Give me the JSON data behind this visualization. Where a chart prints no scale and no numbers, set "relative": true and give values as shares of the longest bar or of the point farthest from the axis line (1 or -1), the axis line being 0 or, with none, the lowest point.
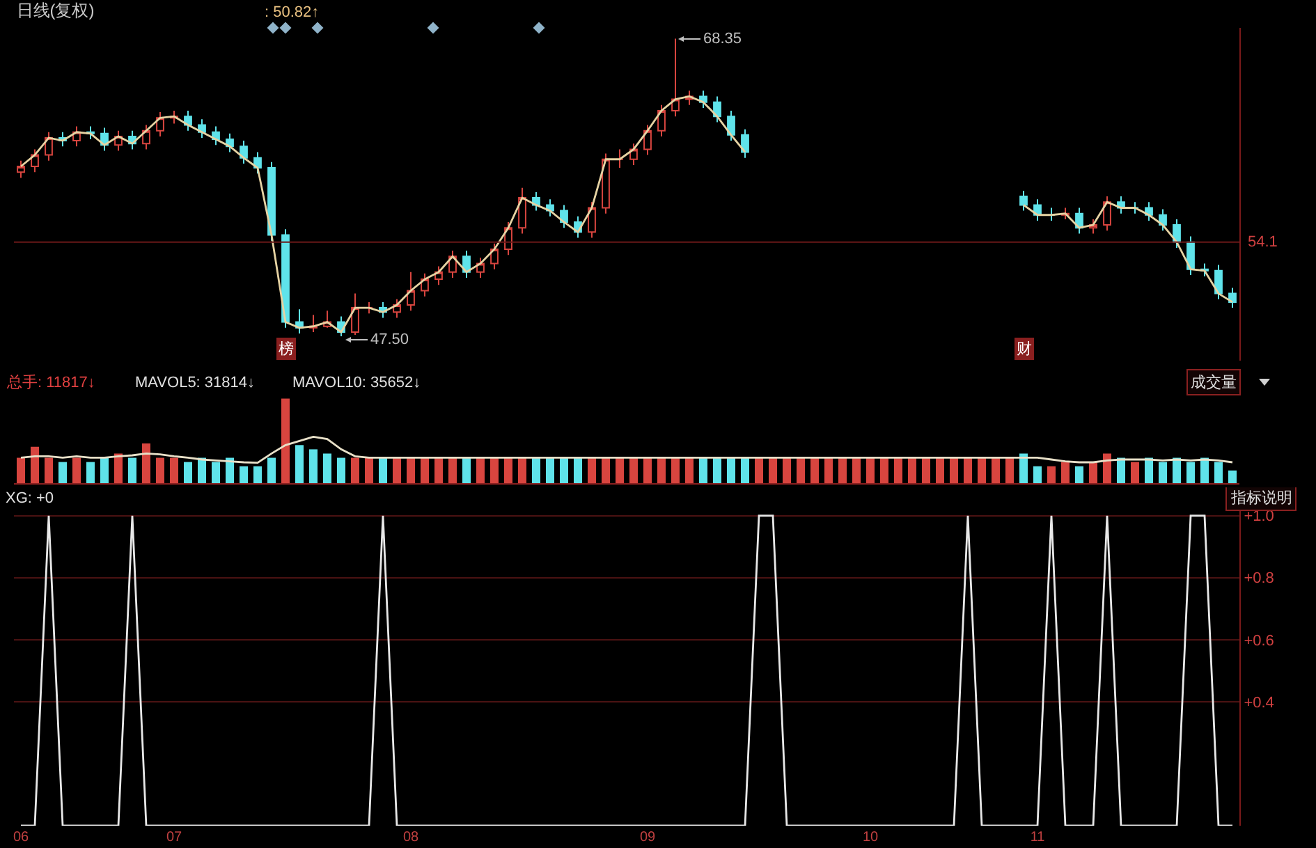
{
  "chart_data": [
    {
      "type": "candlestick",
      "title": "日线(复权)",
      "categories": [
        null,
        null,
        null,
        null,
        null,
        null,
        null,
        null,
        null,
        null,
        null,
        null,
        null,
        null,
        null,
        null,
        null,
        null,
        null,
        null,
        null,
        null,
        null,
        null,
        null,
        null,
        null,
        null,
        null,
        null,
        null,
        null,
        null,
        null,
        null,
        null,
        null,
        null,
        null,
        null,
        null,
        null,
        null,
        null,
        null,
        null,
        null,
        null,
        null,
        null,
        null,
        null,
        null,
        null,
        null,
        null,
        null,
        null,
        null,
        null,
        null,
        null,
        null,
        null,
        null,
        null,
        null,
        null,
        null,
        null,
        null,
        null,
        null,
        null,
        null,
        null,
        null,
        null,
        null,
        null,
        null,
        null,
        null,
        null,
        null,
        null,
        null,
        null
      ],
      "ohlc": [
        [
          59.0,
          59.8,
          58.6,
          59.4
        ],
        [
          59.4,
          60.6,
          59.0,
          60.2
        ],
        [
          60.2,
          61.8,
          59.8,
          61.4
        ],
        [
          61.4,
          61.8,
          60.8,
          61.2
        ],
        [
          61.2,
          62.2,
          60.8,
          61.8
        ],
        [
          61.8,
          62.2,
          61.3,
          61.7
        ],
        [
          61.7,
          62.1,
          60.5,
          60.9
        ],
        [
          60.9,
          61.9,
          60.5,
          61.5
        ],
        [
          61.5,
          61.9,
          60.6,
          61.0
        ],
        [
          61.0,
          62.3,
          60.6,
          61.9
        ],
        [
          61.9,
          63.2,
          61.5,
          62.8
        ],
        [
          62.8,
          63.3,
          62.4,
          62.9
        ],
        [
          62.9,
          63.3,
          61.9,
          62.3
        ],
        [
          62.3,
          62.7,
          61.4,
          61.8
        ],
        [
          61.8,
          62.2,
          60.9,
          61.3
        ],
        [
          61.3,
          61.7,
          60.4,
          60.8
        ],
        [
          60.8,
          61.2,
          59.6,
          60.0
        ],
        [
          60.0,
          60.4,
          58.9,
          59.3
        ],
        [
          59.3,
          59.7,
          54.2,
          54.6
        ],
        [
          54.6,
          55.0,
          48.1,
          48.5
        ],
        [
          48.5,
          49.4,
          47.7,
          48.1
        ],
        [
          48.1,
          49.0,
          47.8,
          48.2
        ],
        [
          48.2,
          49.3,
          48.1,
          48.5
        ],
        [
          48.5,
          48.9,
          47.5,
          47.8
        ],
        [
          47.8,
          50.5,
          47.6,
          49.5
        ],
        [
          49.5,
          49.9,
          49.1,
          49.5
        ],
        [
          49.5,
          49.9,
          48.8,
          49.2
        ],
        [
          49.2,
          50.1,
          48.8,
          49.7
        ],
        [
          49.7,
          52.0,
          49.3,
          50.7
        ],
        [
          50.7,
          51.9,
          50.3,
          51.5
        ],
        [
          51.5,
          52.4,
          51.1,
          52.0
        ],
        [
          52.0,
          53.5,
          51.6,
          53.1
        ],
        [
          53.1,
          53.5,
          51.6,
          52.0
        ],
        [
          52.0,
          53.0,
          51.6,
          52.6
        ],
        [
          52.6,
          54.0,
          52.2,
          53.6
        ],
        [
          53.6,
          55.5,
          53.2,
          55.1
        ],
        [
          55.1,
          57.9,
          54.7,
          57.2
        ],
        [
          57.2,
          57.6,
          56.3,
          56.7
        ],
        [
          56.7,
          57.1,
          55.9,
          56.3
        ],
        [
          56.3,
          56.7,
          55.1,
          55.5
        ],
        [
          55.5,
          55.9,
          54.4,
          54.8
        ],
        [
          54.8,
          56.9,
          54.4,
          56.5
        ],
        [
          56.5,
          60.3,
          56.1,
          59.9
        ],
        [
          59.9,
          60.6,
          59.3,
          59.9
        ],
        [
          59.9,
          61.0,
          59.5,
          60.6
        ],
        [
          60.6,
          62.3,
          60.2,
          61.9
        ],
        [
          61.9,
          63.7,
          61.5,
          63.3
        ],
        [
          63.3,
          68.35,
          62.9,
          64.1
        ],
        [
          64.1,
          64.7,
          63.7,
          64.3
        ],
        [
          64.3,
          64.7,
          63.5,
          63.9
        ],
        [
          63.9,
          64.3,
          62.5,
          62.9
        ],
        [
          62.9,
          63.3,
          61.2,
          61.6
        ],
        [
          61.6,
          62.0,
          60.0,
          60.4
        ],
        null,
        null,
        null,
        null,
        null,
        null,
        null,
        null,
        null,
        null,
        null,
        null,
        null,
        null,
        null,
        null,
        null,
        null,
        null,
        [
          57.3,
          57.7,
          56.3,
          56.7
        ],
        [
          56.7,
          57.1,
          55.6,
          56.0
        ],
        [
          56.0,
          56.5,
          55.6,
          56.0
        ],
        [
          56.0,
          56.5,
          55.7,
          56.1
        ],
        [
          56.1,
          56.5,
          54.7,
          55.1
        ],
        [
          55.1,
          55.7,
          54.7,
          55.3
        ],
        [
          55.3,
          57.3,
          54.9,
          56.9
        ],
        [
          56.9,
          57.3,
          56.1,
          56.5
        ],
        [
          56.5,
          56.9,
          56.1,
          56.5
        ],
        [
          56.5,
          56.9,
          55.6,
          56.0
        ],
        [
          56.0,
          56.4,
          54.9,
          55.3
        ],
        [
          55.3,
          55.7,
          53.7,
          54.1
        ],
        [
          54.1,
          54.5,
          51.8,
          52.2
        ],
        [
          52.2,
          52.6,
          51.7,
          52.1
        ],
        [
          52.1,
          52.5,
          50.1,
          50.5
        ],
        [
          50.5,
          50.9,
          49.5,
          49.9
        ]
      ],
      "series": [
        {
          "type": "line",
          "color": "#e6d3a3",
          "values": [
            59.4,
            60.2,
            61.4,
            61.2,
            61.8,
            61.7,
            60.9,
            61.5,
            61.0,
            61.9,
            62.8,
            62.9,
            62.3,
            61.8,
            61.3,
            60.8,
            60.0,
            59.3,
            54.6,
            48.5,
            48.1,
            48.2,
            48.5,
            47.8,
            49.5,
            49.5,
            49.2,
            49.7,
            50.7,
            51.5,
            52.0,
            53.1,
            52.0,
            52.6,
            53.6,
            55.1,
            57.2,
            56.7,
            56.3,
            55.5,
            54.8,
            56.5,
            59.9,
            59.9,
            60.6,
            61.9,
            63.3,
            64.1,
            64.3,
            63.9,
            62.9,
            61.6,
            60.4,
            null,
            null,
            null,
            null,
            null,
            null,
            null,
            null,
            null,
            null,
            null,
            null,
            null,
            null,
            null,
            null,
            null,
            null,
            null,
            56.7,
            56.0,
            56.0,
            56.1,
            55.1,
            55.3,
            56.9,
            56.5,
            56.5,
            56.0,
            55.3,
            54.1,
            52.2,
            52.1,
            50.5,
            49.9
          ]
        }
      ],
      "ylim": [
        45.8,
        69.1
      ],
      "ref_lines": [
        {
          "axis": "y",
          "value": 54.1,
          "label": "54.1",
          "color": "#6a1818"
        }
      ],
      "annotations": [
        ": 50.82↑",
        "68.35",
        "47.50",
        "榜",
        "财"
      ]
    },
    {
      "type": "bar",
      "relative": true,
      "categories": [
        null,
        null,
        null,
        null,
        null,
        null,
        null,
        null,
        null,
        null,
        null,
        null,
        null,
        null,
        null,
        null,
        null,
        null,
        null,
        null,
        null,
        null,
        null,
        null,
        null,
        null,
        null,
        null,
        null,
        null,
        null,
        null,
        null,
        null,
        null,
        null,
        null,
        null,
        null,
        null,
        null,
        null,
        null,
        null,
        null,
        null,
        null,
        null,
        null,
        null,
        null,
        null,
        null,
        null,
        null,
        null,
        null,
        null,
        null,
        null,
        null,
        null,
        null,
        null,
        null,
        null,
        null,
        null,
        null,
        null,
        null,
        null,
        null,
        null,
        null,
        null,
        null,
        null,
        null,
        null,
        null,
        null,
        null,
        null,
        null,
        null,
        null,
        null
      ],
      "series": [
        {
          "values": [
            0.3,
            0.43,
            0.3,
            0.25,
            0.3,
            0.25,
            0.3,
            0.35,
            0.3,
            0.47,
            0.3,
            0.3,
            0.25,
            0.3,
            0.25,
            0.3,
            0.2,
            0.2,
            0.3,
            1,
            0.45,
            0.4,
            0.35,
            0.3,
            0.3,
            0.3,
            0.3,
            0.3,
            0.3,
            0.3,
            0.3,
            0.3,
            0.3,
            0.3,
            0.3,
            0.3,
            0.3,
            0.3,
            0.3,
            0.3,
            0.3,
            0.3,
            0.3,
            0.3,
            0.3,
            0.3,
            0.3,
            0.3,
            0.3,
            0.3,
            0.3,
            0.3,
            0.3,
            0.3,
            0.3,
            0.3,
            0.3,
            0.3,
            0.3,
            0.3,
            0.3,
            0.3,
            0.3,
            0.3,
            0.3,
            0.3,
            0.3,
            0.3,
            0.3,
            0.3,
            0.3,
            0.3,
            0.35,
            0.2,
            0.2,
            0.25,
            0.2,
            0.25,
            0.35,
            0.3,
            0.25,
            0.3,
            0.25,
            0.3,
            0.25,
            0.3,
            0.25,
            0.15
          ],
          "colors": [
            "#d8453f",
            "#d8453f",
            "#d8453f",
            "#5fe3ea",
            "#d8453f",
            "#5fe3ea",
            "#5fe3ea",
            "#d8453f",
            "#5fe3ea",
            "#d8453f",
            "#d8453f",
            "#d8453f",
            "#5fe3ea",
            "#5fe3ea",
            "#5fe3ea",
            "#5fe3ea",
            "#5fe3ea",
            "#5fe3ea",
            "#5fe3ea",
            "#d8453f",
            "#5fe3ea",
            "#5fe3ea",
            "#5fe3ea",
            "#5fe3ea",
            "#d8453f",
            "#d8453f",
            "#5fe3ea",
            "#d8453f",
            "#d8453f",
            "#d8453f",
            "#d8453f",
            "#d8453f",
            "#5fe3ea",
            "#d8453f",
            "#d8453f",
            "#d8453f",
            "#d8453f",
            "#5fe3ea",
            "#5fe3ea",
            "#5fe3ea",
            "#5fe3ea",
            "#d8453f",
            "#d8453f",
            "#d8453f",
            "#d8453f",
            "#d8453f",
            "#d8453f",
            "#d8453f",
            "#d8453f",
            "#5fe3ea",
            "#5fe3ea",
            "#5fe3ea",
            "#5fe3ea",
            "#d8453f",
            "#d8453f",
            "#d8453f",
            "#d8453f",
            "#d8453f",
            "#d8453f",
            "#d8453f",
            "#d8453f",
            "#d8453f",
            "#d8453f",
            "#d8453f",
            "#d8453f",
            "#d8453f",
            "#d8453f",
            "#d8453f",
            "#d8453f",
            "#d8453f",
            "#d8453f",
            "#d8453f",
            "#5fe3ea",
            "#5fe3ea",
            "#d8453f",
            "#d8453f",
            "#5fe3ea",
            "#d8453f",
            "#d8453f",
            "#5fe3ea",
            "#d8453f",
            "#5fe3ea",
            "#5fe3ea",
            "#5fe3ea",
            "#5fe3ea",
            "#5fe3ea",
            "#5fe3ea",
            "#5fe3ea"
          ]
        }
      ],
      "annotations": [
        "总手: 11817↓",
        "MAVOL5: 31814↓",
        "MAVOL10: 35652↓",
        "成交量"
      ]
    },
    {
      "type": "line",
      "relative": true,
      "categories": [
        null,
        null,
        null,
        null,
        null,
        null,
        null,
        null,
        null,
        null,
        null,
        null,
        null,
        null,
        null,
        null,
        null,
        null,
        null,
        null,
        null,
        null,
        null,
        null,
        null,
        null,
        null,
        null,
        null,
        null,
        null,
        null,
        null,
        null,
        null,
        null,
        null,
        null,
        null,
        null,
        null,
        null,
        null,
        null,
        null,
        null,
        null,
        null,
        null,
        null,
        null,
        null,
        null,
        null,
        null,
        null,
        null,
        null,
        null,
        null,
        null,
        null,
        null,
        null,
        null,
        null,
        null,
        null,
        null,
        null,
        null,
        null,
        null,
        null,
        null,
        null,
        null,
        null,
        null,
        null,
        null,
        null,
        null,
        null,
        null,
        null,
        null,
        null
      ],
      "series": [
        {
          "color": "#e8e0c8",
          "values": [
            0.55,
            0.58,
            0.58,
            0.55,
            0.58,
            0.55,
            0.55,
            0.58,
            0.6,
            0.64,
            0.62,
            0.58,
            0.55,
            0.51,
            0.49,
            0.47,
            0.45,
            0.44,
            0.64,
            0.82,
            0.91,
            1,
            0.95,
            0.73,
            0.58,
            0.55,
            0.55,
            0.55,
            0.55,
            0.55,
            0.55,
            0.55,
            0.55,
            0.55,
            0.55,
            0.55,
            0.55,
            0.55,
            0.55,
            0.55,
            0.55,
            0.55,
            0.55,
            0.55,
            0.55,
            0.55,
            0.55,
            0.55,
            0.55,
            0.55,
            0.55,
            0.55,
            0.55,
            0.55,
            0.55,
            0.55,
            0.55,
            0.55,
            0.55,
            0.55,
            0.55,
            0.55,
            0.55,
            0.55,
            0.55,
            0.55,
            0.55,
            0.55,
            0.55,
            0.55,
            0.55,
            0.55,
            0.55,
            0.55,
            0.51,
            0.47,
            0.45,
            0.45,
            0.49,
            0.51,
            0.51,
            0.51,
            0.49,
            0.51,
            0.49,
            0.51,
            0.49,
            0.45
          ]
        }
      ]
    },
    {
      "type": "line",
      "categories": [
        "06",
        null,
        null,
        null,
        null,
        null,
        null,
        null,
        null,
        null,
        null,
        "07",
        null,
        null,
        null,
        null,
        null,
        null,
        null,
        null,
        null,
        null,
        null,
        null,
        null,
        null,
        null,
        null,
        "08",
        null,
        null,
        null,
        null,
        null,
        null,
        null,
        null,
        null,
        null,
        null,
        null,
        null,
        null,
        null,
        null,
        "09",
        null,
        null,
        null,
        null,
        null,
        null,
        null,
        null,
        null,
        null,
        null,
        null,
        null,
        null,
        null,
        "10",
        null,
        null,
        null,
        null,
        null,
        null,
        null,
        null,
        null,
        null,
        null,
        "11",
        null,
        null,
        null,
        null,
        null,
        null,
        null,
        null,
        null,
        null,
        null,
        null,
        null,
        null
      ],
      "series": [
        {
          "color": "#e8e8e8",
          "values": [
            0,
            0,
            1,
            0,
            0,
            0,
            0,
            0,
            1,
            0,
            0,
            0,
            0,
            0,
            0,
            0,
            0,
            0,
            0,
            0,
            0,
            0,
            0,
            0,
            0,
            0,
            1,
            0,
            0,
            0,
            0,
            0,
            0,
            0,
            0,
            0,
            0,
            0,
            0,
            0,
            0,
            0,
            0,
            0,
            0,
            0,
            0,
            0,
            0,
            0,
            0,
            0,
            0,
            1,
            1,
            0,
            0,
            0,
            0,
            0,
            0,
            0,
            0,
            0,
            0,
            0,
            0,
            0,
            1,
            0,
            0,
            0,
            0,
            0,
            1,
            0,
            0,
            0,
            1,
            0,
            0,
            0,
            0,
            0,
            1,
            1,
            0,
            0
          ]
        }
      ],
      "ylim": [
        0,
        1.06
      ],
      "yticks": [
        {
          "value": 1,
          "label": "+1.0"
        },
        {
          "value": 0.8,
          "label": "+0.8"
        },
        {
          "value": 0.6,
          "label": "+0.6"
        },
        {
          "value": 0.4,
          "label": "+0.4"
        }
      ],
      "grid": "y",
      "annotations": [
        "XG: +0",
        "指标说明"
      ]
    }
  ]
}
